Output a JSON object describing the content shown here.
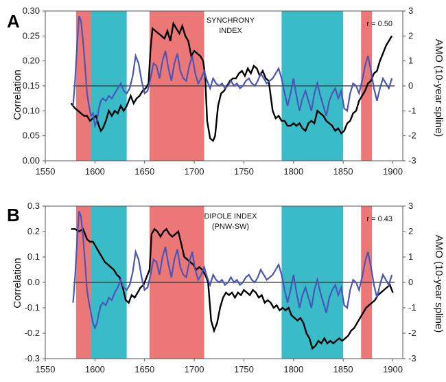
{
  "chart_data": [
    {
      "type": "line",
      "panel": "A",
      "annotation_lines": [
        "SYNCHRONY",
        "INDEX"
      ],
      "r_label": "r = 0.50",
      "ylabel": "Correlation",
      "ylabel_right": "AMO (10-year spline)",
      "xlim": [
        1550,
        1910
      ],
      "ylim": [
        0.0,
        0.3
      ],
      "ylim_right": [
        -3,
        3
      ],
      "x_ticks": [
        "1550",
        "1600",
        "1650",
        "1700",
        "1750",
        "1800",
        "1850",
        "1900"
      ],
      "y_ticks": [
        "0.00",
        "0.05",
        "0.10",
        "0.15",
        "0.20",
        "0.25",
        "0.30"
      ],
      "y_right_ticks": [
        "-3",
        "-2",
        "-1",
        "0",
        "1",
        "2",
        "3"
      ],
      "zero_line": 0.15,
      "bands": [
        {
          "from": 1581,
          "to": 1596,
          "color": "#ec7777"
        },
        {
          "from": 1596,
          "to": 1632,
          "color": "#39bcc8"
        },
        {
          "from": 1655,
          "to": 1710,
          "color": "#ec7777"
        },
        {
          "from": 1788,
          "to": 1850,
          "color": "#39bcc8"
        },
        {
          "from": 1868,
          "to": 1879,
          "color": "#ec7777"
        }
      ],
      "series": [
        {
          "color": "#000000",
          "axis": "left",
          "x": [
            1576,
            1578,
            1580,
            1583,
            1586,
            1589,
            1592,
            1595,
            1598,
            1601,
            1604,
            1606,
            1608,
            1611,
            1614,
            1617,
            1620,
            1623,
            1626,
            1629,
            1632,
            1636,
            1639,
            1642,
            1645,
            1648,
            1651,
            1654,
            1656,
            1658,
            1661,
            1664,
            1667,
            1670,
            1673,
            1676,
            1679,
            1682,
            1685,
            1688,
            1691,
            1694,
            1697,
            1700,
            1703,
            1706,
            1709,
            1711,
            1713,
            1716,
            1719,
            1721,
            1724,
            1727,
            1730,
            1733,
            1736,
            1739,
            1742,
            1745,
            1748,
            1751,
            1754,
            1757,
            1760,
            1763,
            1766,
            1769,
            1772,
            1775,
            1777,
            1779,
            1782,
            1785,
            1788,
            1791,
            1794,
            1797,
            1800,
            1803,
            1806,
            1809,
            1812,
            1815,
            1818,
            1821,
            1824,
            1827,
            1830,
            1833,
            1836,
            1839,
            1842,
            1845,
            1848,
            1851,
            1854,
            1857,
            1860,
            1863,
            1866,
            1869,
            1872,
            1875,
            1878,
            1881,
            1884,
            1887,
            1890,
            1893,
            1896,
            1899
          ],
          "y": [
            0.115,
            0.11,
            0.105,
            0.1,
            0.095,
            0.09,
            0.09,
            0.08,
            0.085,
            0.09,
            0.07,
            0.06,
            0.065,
            0.08,
            0.1,
            0.09,
            0.1,
            0.095,
            0.11,
            0.1,
            0.11,
            0.13,
            0.115,
            0.125,
            0.13,
            0.14,
            0.145,
            0.155,
            0.225,
            0.265,
            0.26,
            0.255,
            0.25,
            0.245,
            0.26,
            0.24,
            0.275,
            0.265,
            0.255,
            0.27,
            0.25,
            0.24,
            0.21,
            0.22,
            0.215,
            0.21,
            0.2,
            0.17,
            0.08,
            0.045,
            0.04,
            0.05,
            0.11,
            0.135,
            0.14,
            0.15,
            0.16,
            0.165,
            0.165,
            0.175,
            0.18,
            0.17,
            0.185,
            0.175,
            0.19,
            0.185,
            0.17,
            0.18,
            0.165,
            0.16,
            0.13,
            0.1,
            0.085,
            0.09,
            0.08,
            0.08,
            0.07,
            0.07,
            0.075,
            0.07,
            0.075,
            0.065,
            0.06,
            0.075,
            0.08,
            0.075,
            0.1,
            0.095,
            0.09,
            0.08,
            0.075,
            0.07,
            0.06,
            0.065,
            0.055,
            0.06,
            0.075,
            0.08,
            0.095,
            0.1,
            0.12,
            0.13,
            0.14,
            0.155,
            0.16,
            0.175,
            0.18,
            0.2,
            0.215,
            0.23,
            0.24,
            0.25
          ]
        },
        {
          "color": "#4a55b8",
          "axis": "right",
          "x": [
            1578,
            1580,
            1582,
            1584,
            1586,
            1588,
            1590,
            1592,
            1594,
            1596,
            1598,
            1600,
            1602,
            1604,
            1606,
            1608,
            1611,
            1614,
            1617,
            1620,
            1623,
            1626,
            1629,
            1632,
            1635,
            1638,
            1641,
            1644,
            1647,
            1650,
            1653,
            1656,
            1659,
            1662,
            1665,
            1668,
            1671,
            1674,
            1677,
            1680,
            1683,
            1686,
            1689,
            1692,
            1695,
            1698,
            1701,
            1704,
            1707,
            1710,
            1713,
            1716,
            1719,
            1722,
            1725,
            1728,
            1731,
            1734,
            1737,
            1740,
            1743,
            1746,
            1749,
            1752,
            1755,
            1758,
            1761,
            1764,
            1767,
            1770,
            1773,
            1776,
            1779,
            1782,
            1785,
            1788,
            1791,
            1794,
            1797,
            1800,
            1803,
            1806,
            1809,
            1812,
            1815,
            1818,
            1821,
            1824,
            1827,
            1830,
            1833,
            1836,
            1839,
            1842,
            1845,
            1848,
            1851,
            1854,
            1857,
            1860,
            1863,
            1866,
            1869,
            1872,
            1875,
            1878,
            1881,
            1884,
            1887,
            1890,
            1893,
            1896,
            1899
          ],
          "y": [
            -0.8,
            0.2,
            1.6,
            2.8,
            2.6,
            1.8,
            0.8,
            -0.3,
            -0.8,
            -1.2,
            -1.1,
            -1.6,
            -1.4,
            -0.9,
            -0.6,
            -0.5,
            -0.6,
            -0.4,
            -0.5,
            -0.3,
            -0.1,
            0.1,
            -0.2,
            -0.3,
            -0.1,
            0.4,
            1.2,
            0.9,
            0.2,
            -0.3,
            -0.2,
            0.3,
            0.9,
            0.8,
            0.3,
            1.0,
            1.4,
            0.7,
            0.2,
            0.9,
            1.3,
            0.6,
            0.3,
            0.2,
            0.8,
            1.2,
            0.5,
            0.1,
            0.3,
            0.6,
            0.2,
            -0.1,
            0.3,
            0.1,
            0.0,
            0.1,
            -0.1,
            0.0,
            0.2,
            0.0,
            0.1,
            -0.1,
            0.0,
            0.2,
            0.3,
            0.1,
            0.0,
            0.2,
            0.5,
            0.3,
            0.1,
            0.2,
            0.3,
            0.5,
            0.7,
            0.3,
            -0.3,
            -0.8,
            -0.3,
            0.3,
            -0.4,
            -1.0,
            -0.5,
            -0.2,
            -0.6,
            -1.0,
            -0.3,
            0.1,
            -0.4,
            -0.8,
            -1.2,
            -0.6,
            -0.3,
            -0.1,
            -0.5,
            -0.2,
            -0.9,
            -1.0,
            -0.3,
            0.1,
            0.0,
            -0.3,
            0.2,
            0.8,
            1.2,
            0.6,
            -0.1,
            -0.6,
            -0.1,
            0.3,
            0.1,
            -0.1,
            0.3
          ]
        }
      ]
    },
    {
      "type": "line",
      "panel": "B",
      "annotation_lines": [
        "DIPOLE INDEX",
        "(PNW-SW)"
      ],
      "r_label": "r = 0.43",
      "ylabel": "Correlation",
      "ylabel_right": "AMO (10-year spline)",
      "xlim": [
        1550,
        1910
      ],
      "ylim": [
        -0.3,
        0.3
      ],
      "ylim_right": [
        -3,
        3
      ],
      "x_ticks": [
        "1550",
        "1600",
        "1650",
        "1700",
        "1750",
        "1800",
        "1850",
        "1900"
      ],
      "y_ticks": [
        "-0.3",
        "-0.2",
        "-0.1",
        "0.0",
        "0.1",
        "0.2",
        "0.3"
      ],
      "y_right_ticks": [
        "-3",
        "-2",
        "-1",
        "0",
        "1",
        "2",
        "3"
      ],
      "zero_line": 0.0,
      "bands": [
        {
          "from": 1581,
          "to": 1596,
          "color": "#ec7777"
        },
        {
          "from": 1596,
          "to": 1632,
          "color": "#39bcc8"
        },
        {
          "from": 1655,
          "to": 1710,
          "color": "#ec7777"
        },
        {
          "from": 1788,
          "to": 1850,
          "color": "#39bcc8"
        },
        {
          "from": 1868,
          "to": 1879,
          "color": "#ec7777"
        }
      ],
      "series": [
        {
          "color": "#000000",
          "axis": "left",
          "x": [
            1576,
            1580,
            1584,
            1588,
            1592,
            1595,
            1598,
            1601,
            1604,
            1607,
            1610,
            1613,
            1616,
            1619,
            1622,
            1625,
            1628,
            1631,
            1634,
            1637,
            1640,
            1643,
            1646,
            1649,
            1652,
            1655,
            1657,
            1660,
            1663,
            1666,
            1669,
            1672,
            1675,
            1678,
            1681,
            1684,
            1687,
            1690,
            1693,
            1696,
            1699,
            1702,
            1705,
            1708,
            1711,
            1714,
            1717,
            1720,
            1723,
            1726,
            1729,
            1732,
            1735,
            1738,
            1741,
            1744,
            1747,
            1750,
            1753,
            1756,
            1759,
            1762,
            1765,
            1768,
            1771,
            1774,
            1777,
            1780,
            1783,
            1786,
            1789,
            1792,
            1795,
            1798,
            1801,
            1804,
            1807,
            1810,
            1813,
            1816,
            1819,
            1822,
            1825,
            1828,
            1831,
            1834,
            1837,
            1840,
            1843,
            1846,
            1849,
            1852,
            1855,
            1858,
            1861,
            1864,
            1867,
            1870,
            1873,
            1876,
            1879,
            1882,
            1885,
            1888,
            1891,
            1894,
            1897,
            1900
          ],
          "y": [
            0.21,
            0.21,
            0.2,
            0.21,
            0.17,
            0.16,
            0.16,
            0.14,
            0.12,
            0.1,
            0.08,
            0.07,
            0.06,
            0.05,
            0.03,
            0.02,
            -0.02,
            -0.07,
            -0.08,
            -0.05,
            -0.06,
            -0.04,
            -0.02,
            -0.01,
            0.02,
            0.05,
            0.19,
            0.21,
            0.2,
            0.18,
            0.2,
            0.21,
            0.19,
            0.18,
            0.19,
            0.2,
            0.15,
            0.1,
            0.09,
            0.08,
            0.07,
            0.05,
            0.06,
            0.05,
            0.03,
            0.0,
            -0.15,
            -0.19,
            -0.16,
            -0.1,
            -0.06,
            -0.04,
            -0.05,
            -0.04,
            -0.06,
            -0.04,
            -0.05,
            -0.03,
            -0.04,
            -0.05,
            -0.03,
            -0.04,
            -0.06,
            -0.05,
            -0.08,
            -0.07,
            -0.08,
            -0.1,
            -0.09,
            -0.11,
            -0.1,
            -0.11,
            -0.1,
            -0.13,
            -0.14,
            -0.15,
            -0.14,
            -0.16,
            -0.2,
            -0.22,
            -0.26,
            -0.25,
            -0.23,
            -0.24,
            -0.22,
            -0.24,
            -0.23,
            -0.24,
            -0.23,
            -0.22,
            -0.23,
            -0.22,
            -0.21,
            -0.19,
            -0.18,
            -0.16,
            -0.14,
            -0.12,
            -0.1,
            -0.09,
            -0.08,
            -0.07,
            -0.05,
            -0.04,
            -0.03,
            -0.02,
            -0.01,
            -0.04
          ]
        },
        {
          "color": "#4a55b8",
          "axis": "right",
          "x": [
            1578,
            1580,
            1582,
            1584,
            1586,
            1588,
            1590,
            1592,
            1594,
            1596,
            1598,
            1600,
            1602,
            1604,
            1606,
            1608,
            1611,
            1614,
            1617,
            1620,
            1623,
            1626,
            1629,
            1632,
            1635,
            1638,
            1641,
            1644,
            1647,
            1650,
            1653,
            1656,
            1659,
            1662,
            1665,
            1668,
            1671,
            1674,
            1677,
            1680,
            1683,
            1686,
            1689,
            1692,
            1695,
            1698,
            1701,
            1704,
            1707,
            1710,
            1713,
            1716,
            1719,
            1722,
            1725,
            1728,
            1731,
            1734,
            1737,
            1740,
            1743,
            1746,
            1749,
            1752,
            1755,
            1758,
            1761,
            1764,
            1767,
            1770,
            1773,
            1776,
            1779,
            1782,
            1785,
            1788,
            1791,
            1794,
            1797,
            1800,
            1803,
            1806,
            1809,
            1812,
            1815,
            1818,
            1821,
            1824,
            1827,
            1830,
            1833,
            1836,
            1839,
            1842,
            1845,
            1848,
            1851,
            1854,
            1857,
            1860,
            1863,
            1866,
            1869,
            1872,
            1875,
            1878,
            1881,
            1884,
            1887,
            1890,
            1893,
            1896,
            1899
          ],
          "y": [
            -0.8,
            0.2,
            1.6,
            2.8,
            2.6,
            1.8,
            0.8,
            -0.3,
            -0.8,
            -1.2,
            -1.6,
            -1.8,
            -1.6,
            -1.2,
            -0.9,
            -0.8,
            -0.9,
            -0.6,
            -0.7,
            -0.4,
            -0.2,
            0.1,
            -0.2,
            -0.3,
            -0.1,
            0.4,
            1.2,
            0.9,
            0.2,
            -0.3,
            -0.2,
            0.3,
            0.9,
            0.8,
            0.3,
            1.0,
            1.4,
            0.7,
            0.2,
            0.9,
            1.3,
            0.6,
            0.3,
            0.2,
            0.8,
            1.2,
            0.5,
            0.1,
            0.3,
            0.6,
            0.2,
            -0.1,
            0.3,
            0.1,
            0.0,
            0.1,
            -0.1,
            0.0,
            0.2,
            0.0,
            0.1,
            -0.1,
            0.0,
            0.2,
            0.3,
            0.1,
            0.0,
            0.2,
            0.5,
            0.3,
            0.1,
            0.2,
            0.3,
            0.5,
            0.7,
            0.3,
            -0.3,
            -0.8,
            -0.3,
            0.3,
            -0.4,
            -1.0,
            -0.5,
            -0.2,
            -0.6,
            -1.0,
            -0.3,
            0.1,
            -0.4,
            -0.8,
            -1.2,
            -0.6,
            -0.3,
            -0.1,
            -0.5,
            -0.2,
            -0.9,
            -1.0,
            -0.3,
            0.1,
            0.0,
            -0.3,
            0.2,
            0.8,
            1.2,
            0.6,
            -0.1,
            -0.6,
            -0.1,
            0.3,
            0.1,
            -0.1,
            0.3
          ]
        }
      ]
    }
  ]
}
